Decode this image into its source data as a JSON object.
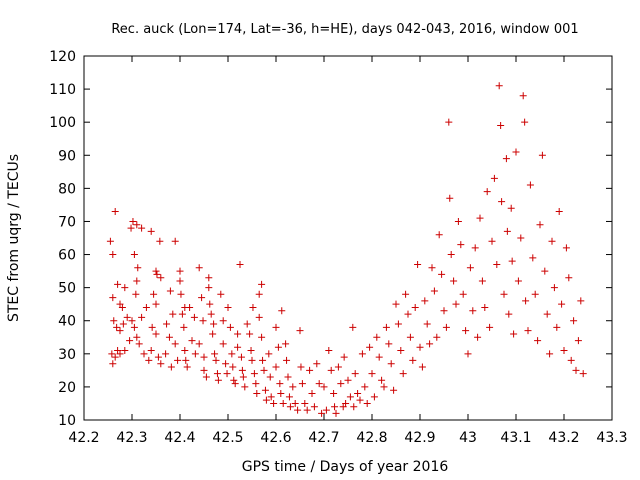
{
  "chart_data": {
    "type": "scatter",
    "title": "Rec. auck (Lon=174, Lat=-36, h=HE), days 042-043, 2016, window 001",
    "xlabel": "GPS time / Days of year 2016",
    "ylabel": "STEC from uqrg / TECUs",
    "xlim": [
      42.2,
      43.3
    ],
    "ylim": [
      10,
      120
    ],
    "xticks": [
      "42.2",
      "42.3",
      "42.4",
      "42.5",
      "42.6",
      "42.7",
      "42.8",
      "42.9",
      "43",
      "43.1",
      "43.2",
      "43.3"
    ],
    "yticks": [
      "10",
      "20",
      "30",
      "40",
      "50",
      "60",
      "70",
      "80",
      "90",
      "100",
      "110",
      "120"
    ],
    "marker": "plus",
    "color": "#cc0000",
    "grid": false,
    "legend": "none",
    "points": [
      [
        42.255,
        64
      ],
      [
        42.26,
        60
      ],
      [
        42.265,
        73
      ],
      [
        42.26,
        47
      ],
      [
        42.27,
        51
      ],
      [
        42.275,
        45
      ],
      [
        42.28,
        44
      ],
      [
        42.285,
        50
      ],
      [
        42.29,
        41
      ],
      [
        42.262,
        40
      ],
      [
        42.268,
        38
      ],
      [
        42.275,
        37
      ],
      [
        42.282,
        39
      ],
      [
        42.258,
        30
      ],
      [
        42.265,
        29
      ],
      [
        42.27,
        31
      ],
      [
        42.26,
        27
      ],
      [
        42.275,
        30
      ],
      [
        42.285,
        31
      ],
      [
        42.295,
        34
      ],
      [
        42.298,
        68
      ],
      [
        42.302,
        70
      ],
      [
        42.31,
        69
      ],
      [
        42.32,
        68
      ],
      [
        42.305,
        60
      ],
      [
        42.312,
        56
      ],
      [
        42.308,
        48
      ],
      [
        42.31,
        52
      ],
      [
        42.3,
        40
      ],
      [
        42.305,
        38
      ],
      [
        42.31,
        35
      ],
      [
        42.315,
        33
      ],
      [
        42.32,
        41
      ],
      [
        42.33,
        44
      ],
      [
        42.325,
        30
      ],
      [
        42.335,
        28
      ],
      [
        42.34,
        31
      ],
      [
        42.34,
        67
      ],
      [
        42.35,
        55
      ],
      [
        42.358,
        64
      ],
      [
        42.345,
        48
      ],
      [
        42.35,
        45
      ],
      [
        42.352,
        54
      ],
      [
        42.36,
        53
      ],
      [
        42.342,
        38
      ],
      [
        42.35,
        36
      ],
      [
        42.355,
        29
      ],
      [
        42.36,
        27
      ],
      [
        42.37,
        30
      ],
      [
        42.372,
        39
      ],
      [
        42.38,
        49
      ],
      [
        42.385,
        42
      ],
      [
        42.39,
        64
      ],
      [
        42.378,
        35
      ],
      [
        42.39,
        33
      ],
      [
        42.395,
        28
      ],
      [
        42.382,
        26
      ],
      [
        42.4,
        55
      ],
      [
        42.4,
        52
      ],
      [
        42.402,
        48
      ],
      [
        42.405,
        42
      ],
      [
        42.408,
        38
      ],
      [
        42.41,
        44
      ],
      [
        42.41,
        31
      ],
      [
        42.412,
        28
      ],
      [
        42.415,
        26
      ],
      [
        42.42,
        44
      ],
      [
        42.43,
        41
      ],
      [
        42.425,
        34
      ],
      [
        42.432,
        30
      ],
      [
        42.44,
        56
      ],
      [
        42.445,
        47
      ],
      [
        42.448,
        40
      ],
      [
        42.44,
        33
      ],
      [
        42.45,
        29
      ],
      [
        42.45,
        25
      ],
      [
        42.455,
        23
      ],
      [
        42.46,
        53
      ],
      [
        42.46,
        50
      ],
      [
        42.462,
        45
      ],
      [
        42.465,
        42
      ],
      [
        42.47,
        39
      ],
      [
        42.468,
        36
      ],
      [
        42.472,
        30
      ],
      [
        42.475,
        28
      ],
      [
        42.478,
        24
      ],
      [
        42.48,
        22
      ],
      [
        42.485,
        48
      ],
      [
        42.49,
        40
      ],
      [
        42.49,
        33
      ],
      [
        42.495,
        27
      ],
      [
        42.498,
        24
      ],
      [
        42.5,
        44
      ],
      [
        42.505,
        38
      ],
      [
        42.508,
        30
      ],
      [
        42.51,
        26
      ],
      [
        42.512,
        22
      ],
      [
        42.515,
        21
      ],
      [
        42.52,
        36
      ],
      [
        42.52,
        32
      ],
      [
        42.525,
        57
      ],
      [
        42.528,
        29
      ],
      [
        42.53,
        25
      ],
      [
        42.532,
        23
      ],
      [
        42.535,
        20
      ],
      [
        42.54,
        39
      ],
      [
        42.545,
        36
      ],
      [
        42.548,
        31
      ],
      [
        42.55,
        28
      ],
      [
        42.552,
        44
      ],
      [
        42.555,
        24
      ],
      [
        42.558,
        21
      ],
      [
        42.56,
        18
      ],
      [
        42.565,
        48
      ],
      [
        42.57,
        51
      ],
      [
        42.565,
        41
      ],
      [
        42.57,
        35
      ],
      [
        42.572,
        28
      ],
      [
        42.575,
        25
      ],
      [
        42.578,
        19
      ],
      [
        42.58,
        16
      ],
      [
        42.585,
        30
      ],
      [
        42.588,
        23
      ],
      [
        42.59,
        17
      ],
      [
        42.595,
        15
      ],
      [
        42.6,
        38
      ],
      [
        42.605,
        32
      ],
      [
        42.6,
        26
      ],
      [
        42.608,
        21
      ],
      [
        42.61,
        18
      ],
      [
        42.612,
        43
      ],
      [
        42.615,
        15
      ],
      [
        42.62,
        33
      ],
      [
        42.622,
        28
      ],
      [
        42.625,
        23
      ],
      [
        42.628,
        17
      ],
      [
        42.63,
        14
      ],
      [
        42.635,
        20
      ],
      [
        42.64,
        15
      ],
      [
        42.645,
        13
      ],
      [
        42.65,
        37
      ],
      [
        42.652,
        26
      ],
      [
        42.655,
        21
      ],
      [
        42.66,
        15
      ],
      [
        42.665,
        13
      ],
      [
        42.67,
        25
      ],
      [
        42.675,
        18
      ],
      [
        42.68,
        14
      ],
      [
        42.685,
        27
      ],
      [
        42.69,
        21
      ],
      [
        42.695,
        12
      ],
      [
        42.7,
        20
      ],
      [
        42.705,
        13
      ],
      [
        42.71,
        31
      ],
      [
        42.715,
        25
      ],
      [
        42.72,
        18
      ],
      [
        42.722,
        14
      ],
      [
        42.725,
        12
      ],
      [
        42.73,
        26
      ],
      [
        42.735,
        21
      ],
      [
        42.74,
        14
      ],
      [
        42.742,
        29
      ],
      [
        42.745,
        15
      ],
      [
        42.75,
        22
      ],
      [
        42.755,
        17
      ],
      [
        42.76,
        38
      ],
      [
        42.762,
        14
      ],
      [
        42.765,
        24
      ],
      [
        42.77,
        18
      ],
      [
        42.775,
        16
      ],
      [
        42.78,
        30
      ],
      [
        42.785,
        20
      ],
      [
        42.79,
        15
      ],
      [
        42.795,
        32
      ],
      [
        42.8,
        24
      ],
      [
        42.805,
        17
      ],
      [
        42.81,
        35
      ],
      [
        42.815,
        29
      ],
      [
        42.82,
        22
      ],
      [
        42.825,
        20
      ],
      [
        42.83,
        38
      ],
      [
        42.835,
        33
      ],
      [
        42.84,
        27
      ],
      [
        42.845,
        19
      ],
      [
        42.85,
        45
      ],
      [
        42.855,
        39
      ],
      [
        42.86,
        31
      ],
      [
        42.865,
        24
      ],
      [
        42.87,
        48
      ],
      [
        42.875,
        42
      ],
      [
        42.88,
        35
      ],
      [
        42.885,
        28
      ],
      [
        42.89,
        44
      ],
      [
        42.895,
        57
      ],
      [
        42.9,
        32
      ],
      [
        42.905,
        26
      ],
      [
        42.91,
        46
      ],
      [
        42.915,
        39
      ],
      [
        42.92,
        33
      ],
      [
        42.925,
        56
      ],
      [
        42.93,
        49
      ],
      [
        42.935,
        35
      ],
      [
        42.94,
        66
      ],
      [
        42.945,
        54
      ],
      [
        42.95,
        43
      ],
      [
        42.955,
        38
      ],
      [
        42.96,
        100
      ],
      [
        42.962,
        77
      ],
      [
        42.965,
        60
      ],
      [
        42.97,
        52
      ],
      [
        42.975,
        45
      ],
      [
        42.98,
        70
      ],
      [
        42.985,
        63
      ],
      [
        42.99,
        48
      ],
      [
        42.995,
        37
      ],
      [
        43.0,
        30
      ],
      [
        43.005,
        56
      ],
      [
        43.01,
        43
      ],
      [
        43.015,
        62
      ],
      [
        43.02,
        35
      ],
      [
        43.025,
        71
      ],
      [
        43.03,
        52
      ],
      [
        43.035,
        44
      ],
      [
        43.04,
        79
      ],
      [
        43.045,
        38
      ],
      [
        43.05,
        64
      ],
      [
        43.055,
        83
      ],
      [
        43.06,
        57
      ],
      [
        43.065,
        111
      ],
      [
        43.068,
        99
      ],
      [
        43.07,
        76
      ],
      [
        43.075,
        48
      ],
      [
        43.08,
        89
      ],
      [
        43.082,
        67
      ],
      [
        43.085,
        42
      ],
      [
        43.09,
        74
      ],
      [
        43.092,
        58
      ],
      [
        43.095,
        36
      ],
      [
        43.1,
        91
      ],
      [
        43.105,
        52
      ],
      [
        43.11,
        65
      ],
      [
        43.115,
        108
      ],
      [
        43.118,
        100
      ],
      [
        43.12,
        46
      ],
      [
        43.125,
        37
      ],
      [
        43.13,
        81
      ],
      [
        43.135,
        59
      ],
      [
        43.14,
        48
      ],
      [
        43.145,
        34
      ],
      [
        43.15,
        69
      ],
      [
        43.155,
        90
      ],
      [
        43.16,
        55
      ],
      [
        43.165,
        42
      ],
      [
        43.17,
        30
      ],
      [
        43.175,
        64
      ],
      [
        43.18,
        50
      ],
      [
        43.185,
        38
      ],
      [
        43.19,
        73
      ],
      [
        43.195,
        45
      ],
      [
        43.2,
        31
      ],
      [
        43.205,
        62
      ],
      [
        43.21,
        53
      ],
      [
        43.215,
        28
      ],
      [
        43.22,
        40
      ],
      [
        43.225,
        25
      ],
      [
        43.23,
        34
      ],
      [
        43.235,
        46
      ],
      [
        43.24,
        24
      ]
    ]
  }
}
